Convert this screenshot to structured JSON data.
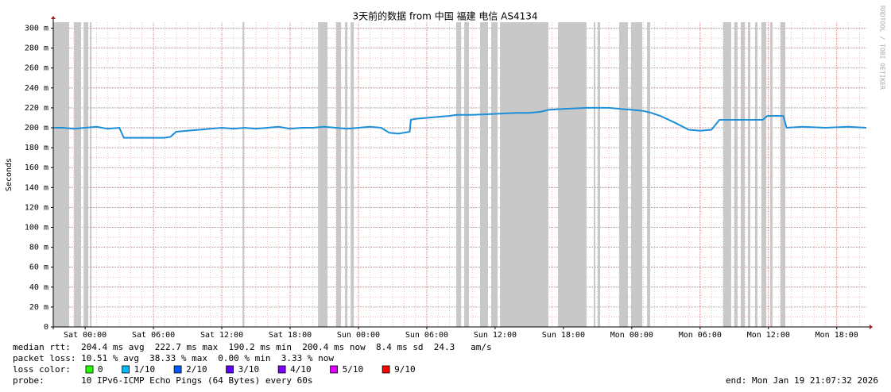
{
  "chart_data": {
    "type": "line",
    "title": "3天前的数据 from 中国 福建 电信 AS4134",
    "y_label": "Seconds",
    "watermark": "RRDTOOL / TOBI OETIKER",
    "xlim": [
      -2.8,
      68.6
    ],
    "ylim": [
      0,
      306
    ],
    "grid": true,
    "xticks": [
      {
        "value": 0,
        "label": "Sat 00:00"
      },
      {
        "value": 6,
        "label": "Sat 06:00"
      },
      {
        "value": 12,
        "label": "Sat 12:00"
      },
      {
        "value": 18,
        "label": "Sat 18:00"
      },
      {
        "value": 24,
        "label": "Sun 00:00"
      },
      {
        "value": 30,
        "label": "Sun 06:00"
      },
      {
        "value": 36,
        "label": "Sun 12:00"
      },
      {
        "value": 42,
        "label": "Sun 18:00"
      },
      {
        "value": 48,
        "label": "Mon 00:00"
      },
      {
        "value": 54,
        "label": "Mon 06:00"
      },
      {
        "value": 60,
        "label": "Mon 12:00"
      },
      {
        "value": 66,
        "label": "Mon 18:00"
      }
    ],
    "yticks": [
      0,
      {
        "value": 20,
        "label": "20 m"
      },
      {
        "value": 40,
        "label": "40 m"
      },
      {
        "value": 60,
        "label": "60 m"
      },
      {
        "value": 80,
        "label": "80 m"
      },
      {
        "value": 100,
        "label": "100 m"
      },
      {
        "value": 120,
        "label": "120 m"
      },
      {
        "value": 140,
        "label": "140 m"
      },
      {
        "value": 160,
        "label": "160 m"
      },
      {
        "value": 180,
        "label": "180 m"
      },
      {
        "value": 200,
        "label": "200 m"
      },
      {
        "value": 220,
        "label": "220 m"
      },
      {
        "value": 240,
        "label": "240 m"
      },
      {
        "value": 260,
        "label": "260 m"
      },
      {
        "value": 280,
        "label": "280 m"
      },
      {
        "value": 300,
        "label": "300 m"
      }
    ],
    "x": [
      -2.8,
      -2,
      -1,
      0,
      1,
      2,
      3,
      3.4,
      4,
      5,
      6,
      7,
      7.5,
      8,
      9,
      10,
      11,
      12,
      13,
      14,
      15,
      16,
      17,
      18,
      19,
      20,
      21,
      22,
      23,
      24,
      25,
      26,
      26.7,
      27.5,
      28.5,
      28.6,
      29,
      30,
      31,
      32,
      32.6,
      34,
      36,
      37.9,
      39,
      40,
      40.7,
      42,
      44,
      46,
      47,
      48,
      49,
      49.7,
      50.5,
      51.8,
      53,
      54,
      55,
      55.7,
      57,
      59.5,
      59.9,
      61.3,
      61.6,
      63,
      65,
      67,
      68.6
    ],
    "values": [
      200,
      200,
      199,
      200,
      201,
      199,
      200,
      190,
      190,
      190,
      190,
      190,
      191,
      196,
      197,
      198,
      199,
      200,
      199,
      200,
      199,
      200,
      201,
      199,
      200,
      200,
      201,
      200,
      199,
      200,
      201,
      200,
      195,
      194,
      196,
      208,
      209,
      210,
      211,
      212,
      213,
      213,
      214,
      215,
      215,
      216,
      218,
      219,
      220,
      220,
      219,
      218,
      217,
      215,
      212,
      205,
      198,
      197,
      198,
      208,
      208,
      208,
      212,
      212,
      200,
      201,
      200,
      201,
      200
    ],
    "color": "#1c8fd8",
    "loss_bars": {
      "color": "#c8c8c8",
      "spans": [
        [
          -2.79,
          -1.4
        ],
        [
          -0.98,
          -0.35
        ],
        [
          -0.14,
          0.28
        ],
        [
          0.42,
          0.56
        ],
        [
          13.82,
          13.96
        ],
        [
          20.45,
          21.28
        ],
        [
          22.05,
          22.47
        ],
        [
          22.82,
          23.03
        ],
        [
          23.31,
          23.59
        ],
        [
          32.59,
          33.01
        ],
        [
          33.29,
          33.71
        ],
        [
          34.68,
          35.38
        ],
        [
          35.66,
          36.22
        ],
        [
          36.43,
          40.68
        ],
        [
          41.52,
          44.03
        ],
        [
          44.66,
          44.8
        ],
        [
          45.01,
          45.22
        ],
        [
          46.9,
          47.66
        ],
        [
          47.94,
          48.92
        ],
        [
          49.34,
          49.62
        ],
        [
          56.04,
          56.73
        ],
        [
          57.01,
          57.29
        ],
        [
          57.57,
          57.92
        ],
        [
          58.2,
          58.41
        ],
        [
          58.83,
          59.04
        ],
        [
          59.38,
          59.81
        ],
        [
          60.15,
          60.36
        ],
        [
          61.06,
          61.48
        ]
      ]
    },
    "stats": [
      "median rtt:  204.4 ms avg  222.7 ms max  190.2 ms min  200.4 ms now  8.4 ms sd  24.3   am/s",
      "packet loss: 10.51 % avg  38.33 % max  0.00 % min  3.33 % now"
    ],
    "loss_legend": {
      "label": "loss color:",
      "items": [
        {
          "label": "0",
          "color": "#26ff00"
        },
        {
          "label": "1/10",
          "color": "#00b8ff"
        },
        {
          "label": "2/10",
          "color": "#0059ff"
        },
        {
          "label": "3/10",
          "color": "#5e00ff"
        },
        {
          "label": "4/10",
          "color": "#7e00ff"
        },
        {
          "label": "5/10",
          "color": "#dd00ff"
        },
        {
          "label": "9/10",
          "color": "#ff0000"
        }
      ]
    },
    "probe": "probe:       10 IPv6-ICMP Echo Pings (64 Bytes) every 60s",
    "end": "end: Mon Jan 19 21:07:32 2026"
  }
}
